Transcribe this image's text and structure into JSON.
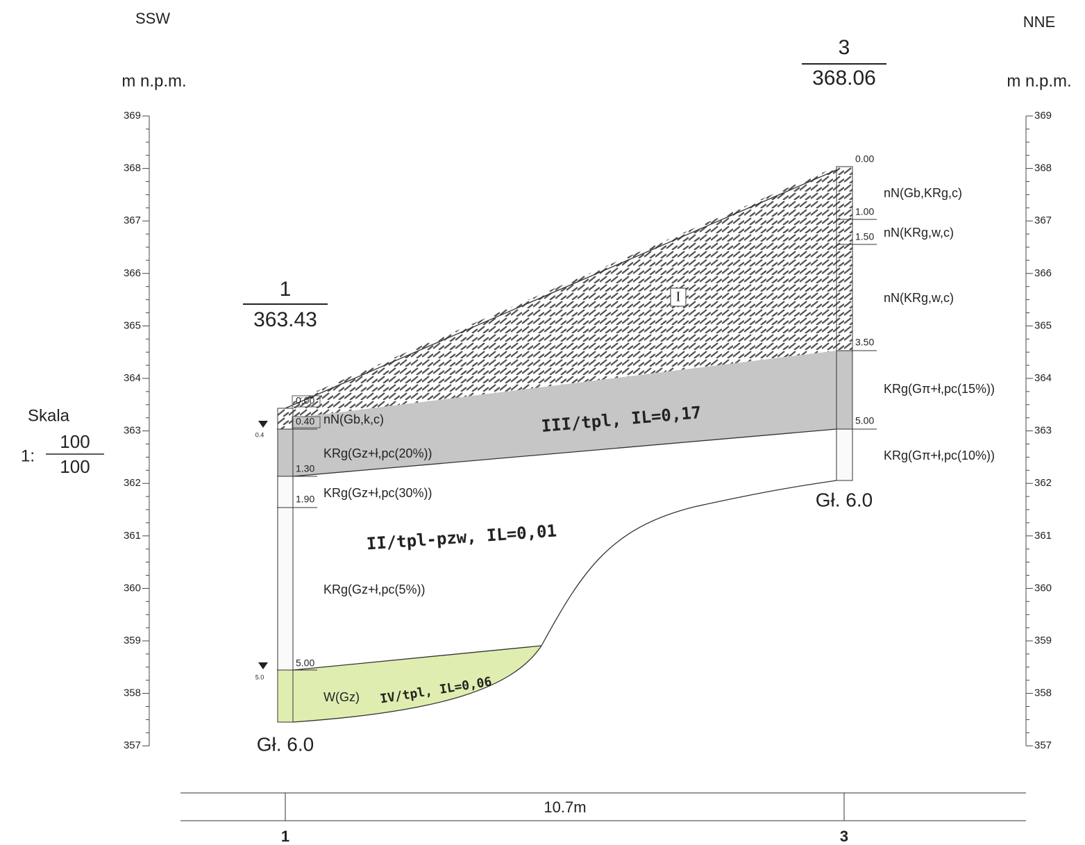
{
  "header": {
    "left_direction": "SSW",
    "right_direction": "NNE"
  },
  "axes": {
    "left_unit": "m n.p.m.",
    "right_unit": "m n.p.m.",
    "left_ticks": [
      "369",
      "368",
      "367",
      "366",
      "365",
      "364",
      "363",
      "362",
      "361",
      "360",
      "359",
      "358",
      "357"
    ],
    "right_ticks": [
      "369",
      "368",
      "367",
      "366",
      "365",
      "364",
      "363",
      "362",
      "361",
      "360",
      "359",
      "358",
      "357"
    ]
  },
  "scale": {
    "label": "Skala",
    "prefix": "1:",
    "numerator": "100",
    "denominator": "100"
  },
  "boreholes": [
    {
      "number": "1",
      "elevation": "363.43",
      "depth": "Gł. 6.0",
      "depths": [
        "0.00",
        "0.40",
        "1.30",
        "1.90",
        "5.00"
      ],
      "water": [
        "0.4",
        "5.0"
      ],
      "soils": [
        "nN(Gb,k,c)",
        "KRg(Gz+ł,pc(20%))",
        "KRg(Gz+ł,pc(30%))",
        "KRg(Gz+ł,pc(5%))",
        "W(Gz)"
      ]
    },
    {
      "number": "3",
      "elevation": "368.06",
      "depth": "Gł. 6.0",
      "depths": [
        "0.00",
        "1.00",
        "1.50",
        "3.50",
        "5.00"
      ],
      "soils": [
        "nN(Gb,KRg,c)",
        "nN(KRg,w,c)",
        "nN(KRg,w,c)",
        "KRg(Gπ+ł,pc(15%))",
        "KRg(Gπ+ł,pc(10%))"
      ]
    }
  ],
  "layers": [
    "I",
    "III/tpl, IL=0,17",
    "II/tpl-pzw, IL=0,01",
    "IV/tpl, IL=0,06"
  ],
  "footer": {
    "distance": "10.7m",
    "left_point": "1",
    "right_point": "3"
  }
}
